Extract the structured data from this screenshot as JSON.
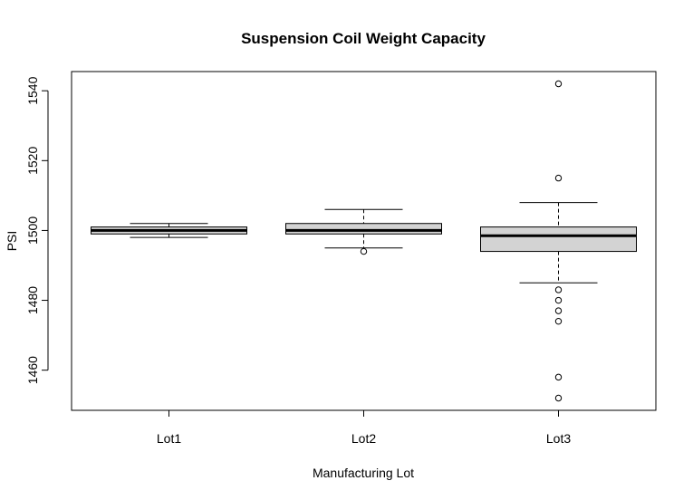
{
  "chart_data": {
    "type": "boxplot",
    "title": "Suspension Coil Weight Capacity",
    "xlabel": "Manufacturing Lot",
    "ylabel": "PSI",
    "ylim": [
      1448.5,
      1545.5
    ],
    "yticks": [
      1460,
      1480,
      1500,
      1520,
      1540
    ],
    "grid": false,
    "legend": "none",
    "box_fill": "#d3d3d3",
    "categories": [
      "Lot1",
      "Lot2",
      "Lot3"
    ],
    "series": [
      {
        "category": "Lot1",
        "whisker_low": 1498,
        "q1": 1499,
        "median": 1500,
        "q3": 1501,
        "whisker_high": 1502,
        "outliers": []
      },
      {
        "category": "Lot2",
        "whisker_low": 1495,
        "q1": 1499,
        "median": 1500,
        "q3": 1502,
        "whisker_high": 1506,
        "outliers": [
          1494
        ]
      },
      {
        "category": "Lot3",
        "whisker_low": 1485,
        "q1": 1494,
        "median": 1498.5,
        "q3": 1501,
        "whisker_high": 1508,
        "outliers": [
          1542,
          1515,
          1483,
          1480,
          1477,
          1474,
          1458,
          1452
        ]
      }
    ]
  }
}
